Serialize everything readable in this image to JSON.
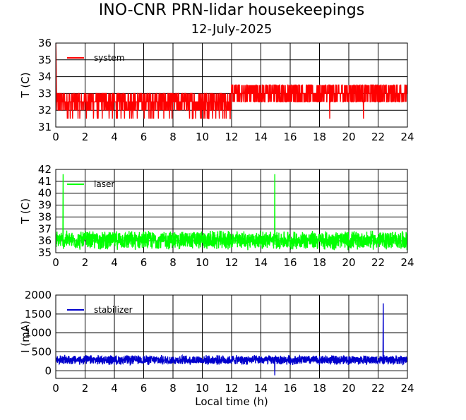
{
  "title": "INO-CNR PRN-lidar housekeepings",
  "subtitle": "12-July-2025",
  "chart_data": [
    {
      "type": "line",
      "ylabel": "T (C)",
      "xlabel": "",
      "xlim": [
        0,
        24
      ],
      "ylim": [
        31,
        36
      ],
      "xticks": [
        "0",
        "2",
        "4",
        "6",
        "8",
        "10",
        "12",
        "14",
        "16",
        "18",
        "20",
        "22",
        "24"
      ],
      "yticks": [
        "31",
        "32",
        "33",
        "34",
        "35",
        "36"
      ],
      "grid": true,
      "legend_position": "top-left",
      "series": [
        {
          "name": "system",
          "color": "#ff0000",
          "levels": [
            31.5,
            32,
            32.5,
            33,
            33.5
          ],
          "baseline": 32.5,
          "shift_to": 33,
          "shift_at": 12.0,
          "start_values": [
            36,
            35.5,
            34.5,
            33.5
          ],
          "spikes": [
            {
              "x": 18.7,
              "y": 31.5
            },
            {
              "x": 21.0,
              "y": 31.5
            }
          ]
        }
      ]
    },
    {
      "type": "line",
      "ylabel": "T (C)",
      "xlabel": "",
      "xlim": [
        0,
        24
      ],
      "ylim": [
        35,
        42
      ],
      "xticks": [
        "0",
        "2",
        "4",
        "6",
        "8",
        "10",
        "12",
        "14",
        "16",
        "18",
        "20",
        "22",
        "24"
      ],
      "yticks": [
        "35",
        "36",
        "37",
        "38",
        "39",
        "40",
        "41",
        "42"
      ],
      "grid": true,
      "legend_position": "top-left",
      "series": [
        {
          "name": "laser",
          "color": "#00ff00",
          "range": [
            35.2,
            36.9
          ],
          "spikes": [
            {
              "x": 0.5,
              "y": 41.6
            },
            {
              "x": 14.95,
              "y": 41.6
            }
          ]
        }
      ]
    },
    {
      "type": "line",
      "ylabel": "I (mA)",
      "xlabel": "Local time (h)",
      "xlim": [
        0,
        24
      ],
      "ylim": [
        -200,
        2000
      ],
      "xticks": [
        "0",
        "2",
        "4",
        "6",
        "8",
        "10",
        "12",
        "14",
        "16",
        "18",
        "20",
        "22",
        "24"
      ],
      "yticks": [
        "0",
        "500",
        "1000",
        "1500",
        "2000"
      ],
      "ytick_values": [
        0,
        500,
        1000,
        1500,
        2000
      ],
      "grid": true,
      "legend_position": "top-left",
      "series": [
        {
          "name": "stabilizer",
          "color": "#0000cc",
          "range": [
            150,
            420
          ],
          "spikes": [
            {
              "x": 22.35,
              "y": 1780
            },
            {
              "x": 14.95,
              "y": -120
            }
          ]
        }
      ]
    }
  ]
}
